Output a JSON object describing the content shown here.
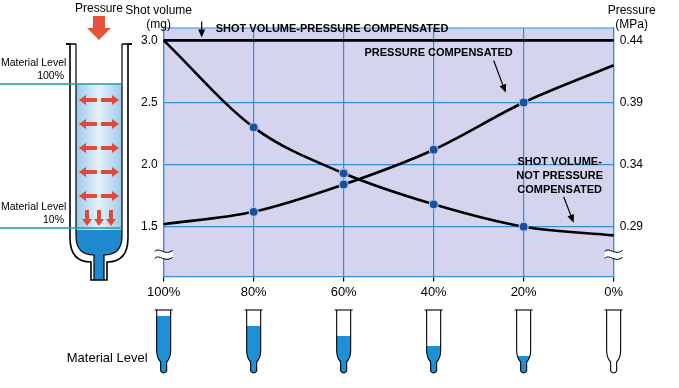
{
  "chart_data": {
    "type": "line",
    "x_label": "Material Level",
    "y_label": "Shot volume\n(mg)",
    "y2_label": "Pressure\n(MPa)",
    "categories": [
      "100%",
      "80%",
      "60%",
      "40%",
      "20%",
      "0%"
    ],
    "series": [
      {
        "name": "SHOT VOLUME-PRESSURE COMPENSATED",
        "color": "#000000",
        "marker": "none",
        "values": [
          3.0,
          3.0,
          3.0,
          3.0,
          3.0,
          3.0
        ]
      },
      {
        "name": "PRESSURE COMPENSATED",
        "color": "#000000",
        "marker": "circle",
        "axis": "y2",
        "values": [
          0.292,
          0.302,
          0.324,
          0.352,
          0.39,
          0.42
        ]
      },
      {
        "name": "SHOT VOLUME-\nNOT PRESSURE\nCOMPENSATED",
        "color": "#000000",
        "marker": "circle",
        "values": [
          3.0,
          2.3,
          1.93,
          1.68,
          1.5,
          1.43
        ]
      }
    ],
    "ylim": [
      1.1,
      3.1
    ],
    "yticks": [
      1.5,
      {
        "value": 2,
        "label": "2.0"
      },
      2.5,
      {
        "value": 3,
        "label": "3.0"
      }
    ],
    "y2lim": [
      0.25,
      0.45
    ],
    "y2ticks": [
      0.29,
      0.34,
      0.39,
      0.44
    ],
    "grid": true
  },
  "diagram": {
    "label": "Pressure",
    "levels": [
      {
        "label": "Material Level",
        "level": "100%"
      },
      {
        "label": "Material Level",
        "level": "10%"
      }
    ]
  }
}
